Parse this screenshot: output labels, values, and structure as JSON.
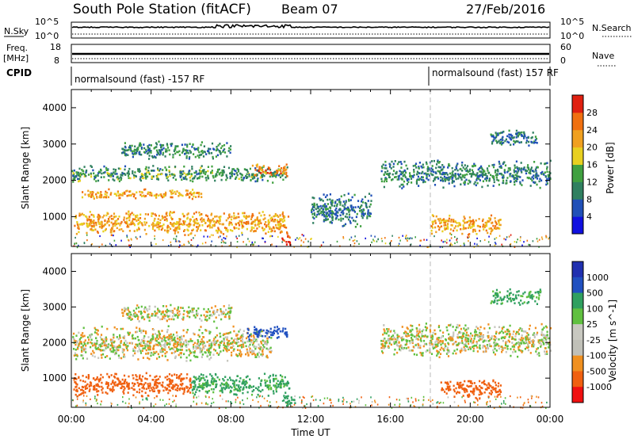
{
  "header": {
    "station": "South Pole Station (fitACF)",
    "beam": "Beam 07",
    "date": "27/Feb/2016"
  },
  "left_labels": {
    "nsky": "N.Sky",
    "nsky_top": "10^5",
    "nsky_bottom": "10^0",
    "freq": "Freq.",
    "freq_unit": "[MHz]",
    "freq_top": "18",
    "freq_bottom": "8",
    "cpid": "CPID"
  },
  "right_labels": {
    "nsearch": "N.Search",
    "nsearch_top": "10^5",
    "nsearch_bottom": "10^0",
    "nave": "Nave",
    "nave_top": "60",
    "nave_bottom": "0"
  },
  "cpid_bar": {
    "left_label": "normalsound (fast) -157 RF",
    "right_label": "normalsound (fast) 157 RF",
    "switch_time": "18:00"
  },
  "colors": {
    "power": [
      "#1010e0",
      "#2050b8",
      "#308060",
      "#40a040",
      "#e8d020",
      "#f0a020",
      "#f07010",
      "#e02010"
    ],
    "velocity": [
      "#f01010",
      "#f06010",
      "#f09020",
      "#c0c0b8",
      "#c8c8c0",
      "#60c040",
      "#30a060",
      "#2050c0",
      "#2030b0"
    ]
  },
  "chart_data": [
    {
      "type": "heatmap",
      "name": "power",
      "xlabel": "",
      "ylabel": "Slant Range [km]",
      "xlim": [
        "00:00",
        "24:00"
      ],
      "ylim": [
        180,
        4500
      ],
      "y_ticks": [
        "1000",
        "2000",
        "3000",
        "4000"
      ],
      "colorbar": {
        "label": "Power [dB]",
        "ticks": [
          "4",
          "8",
          "12",
          "16",
          "20",
          "24",
          "28"
        ],
        "range": [
          0,
          32
        ]
      },
      "bands": [
        {
          "t_start": 0.1,
          "t_end": 10.9,
          "range_center": 850,
          "range_width": 350,
          "value": 22
        },
        {
          "t_start": 0.5,
          "t_end": 6.5,
          "range_center": 1650,
          "range_width": 150,
          "value": 22
        },
        {
          "t_start": 0.0,
          "t_end": 10.8,
          "range_center": 2200,
          "range_width": 250,
          "value": 12
        },
        {
          "t_start": 9.0,
          "t_end": 10.8,
          "range_center": 2300,
          "range_width": 180,
          "value": 24
        },
        {
          "t_start": 2.5,
          "t_end": 8.0,
          "range_center": 2850,
          "range_width": 250,
          "value": 11
        },
        {
          "t_start": 10.5,
          "t_end": 11.0,
          "range_center": 400,
          "range_width": 150,
          "value": 30
        },
        {
          "t_start": 15.5,
          "t_end": 24.0,
          "range_center": 2200,
          "range_width": 400,
          "value": 10
        },
        {
          "t_start": 18.0,
          "t_end": 21.5,
          "range_center": 800,
          "range_width": 300,
          "value": 22
        },
        {
          "t_start": 21.0,
          "t_end": 23.5,
          "range_center": 3200,
          "range_width": 250,
          "value": 9
        },
        {
          "t_start": 12.0,
          "t_end": 15.0,
          "range_center": 1200,
          "range_width": 500,
          "value": 9
        }
      ]
    },
    {
      "type": "heatmap",
      "name": "velocity",
      "xlabel": "Time UT",
      "ylabel": "Slant Range [km]",
      "x_ticks": [
        "00:00",
        "04:00",
        "08:00",
        "12:00",
        "16:00",
        "20:00",
        "00:00"
      ],
      "ylim": [
        180,
        4500
      ],
      "y_ticks": [
        "1000",
        "2000",
        "3000",
        "4000"
      ],
      "colorbar": {
        "label": "Velocity [m s^-1]",
        "ticks": [
          "1000",
          "500",
          "100",
          "25",
          "-25",
          "-100",
          "-500",
          "-1000"
        ]
      },
      "bands": [
        {
          "t_start": 0.1,
          "t_end": 6.0,
          "range_center": 850,
          "range_width": 350,
          "value": -300
        },
        {
          "t_start": 6.0,
          "t_end": 10.9,
          "range_center": 850,
          "range_width": 350,
          "value": 150
        },
        {
          "t_start": 0.0,
          "t_end": 10.0,
          "range_center": 2000,
          "range_width": 500,
          "value": 0
        },
        {
          "t_start": 8.8,
          "t_end": 10.8,
          "range_center": 2300,
          "range_width": 200,
          "value": 700
        },
        {
          "t_start": 2.5,
          "t_end": 8.0,
          "range_center": 2850,
          "range_width": 250,
          "value": 0
        },
        {
          "t_start": 10.5,
          "t_end": 11.2,
          "range_center": 400,
          "range_width": 200,
          "value": 200
        },
        {
          "t_start": 15.5,
          "t_end": 24.0,
          "range_center": 2100,
          "range_width": 500,
          "value": 0
        },
        {
          "t_start": 18.5,
          "t_end": 21.5,
          "range_center": 750,
          "range_width": 300,
          "value": -300
        },
        {
          "t_start": 21.0,
          "t_end": 23.5,
          "range_center": 3300,
          "range_width": 250,
          "value": 150
        }
      ]
    }
  ]
}
